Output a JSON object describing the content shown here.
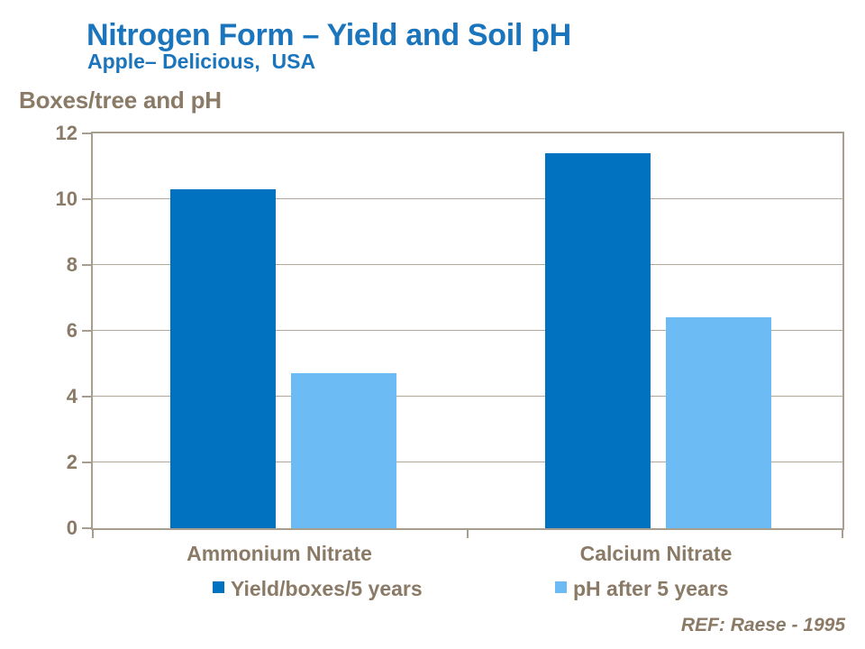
{
  "header": {
    "title": "Nitrogen Form – Yield and Soil pH",
    "subtitle": "Apple– Delicious,  USA"
  },
  "footer": {
    "reference": "REF: Raese - 1995"
  },
  "chart_data": {
    "type": "bar",
    "title": "Nitrogen Form – Yield and Soil pH",
    "subtitle": "Apple– Delicious, USA",
    "axis_title": "Boxes/tree and pH",
    "categories": [
      "Ammonium Nitrate",
      "Calcium Nitrate"
    ],
    "series": [
      {
        "name": "Yield/boxes/5 years",
        "color": "#0072C0",
        "values": [
          10.3,
          11.4
        ]
      },
      {
        "name": "pH after 5 years",
        "color": "#6CBBF5",
        "values": [
          4.7,
          6.4
        ]
      }
    ],
    "ylim": [
      0,
      12
    ],
    "ytick_step": 2,
    "grid": true,
    "legend_position": "bottom"
  },
  "colors": {
    "title": "#1B75BC",
    "text": "#8A7A66",
    "grid": "#B2A99B",
    "axis": "#A89E90",
    "background": "#FFFFFF"
  }
}
